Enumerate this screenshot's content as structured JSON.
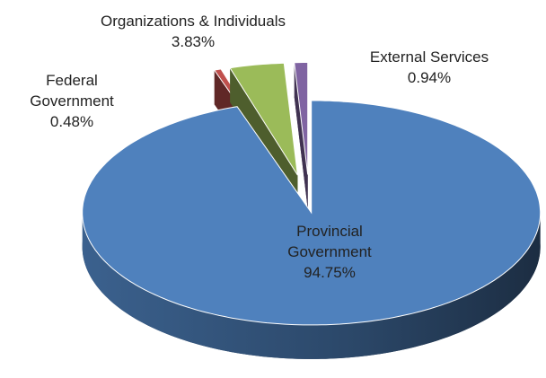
{
  "chart_data": {
    "type": "pie",
    "categories": [
      "Provincial Government",
      "Federal Government",
      "Organizations & Individuals",
      "External Services"
    ],
    "values": [
      94.75,
      0.48,
      3.83,
      0.94
    ],
    "value_labels": [
      "94.75%",
      "0.48%",
      "3.83%",
      "0.94%"
    ],
    "colors": [
      "#4f81bd",
      "#c0504d",
      "#9bbb59",
      "#8064a2"
    ],
    "three_d": true,
    "explode": true
  }
}
